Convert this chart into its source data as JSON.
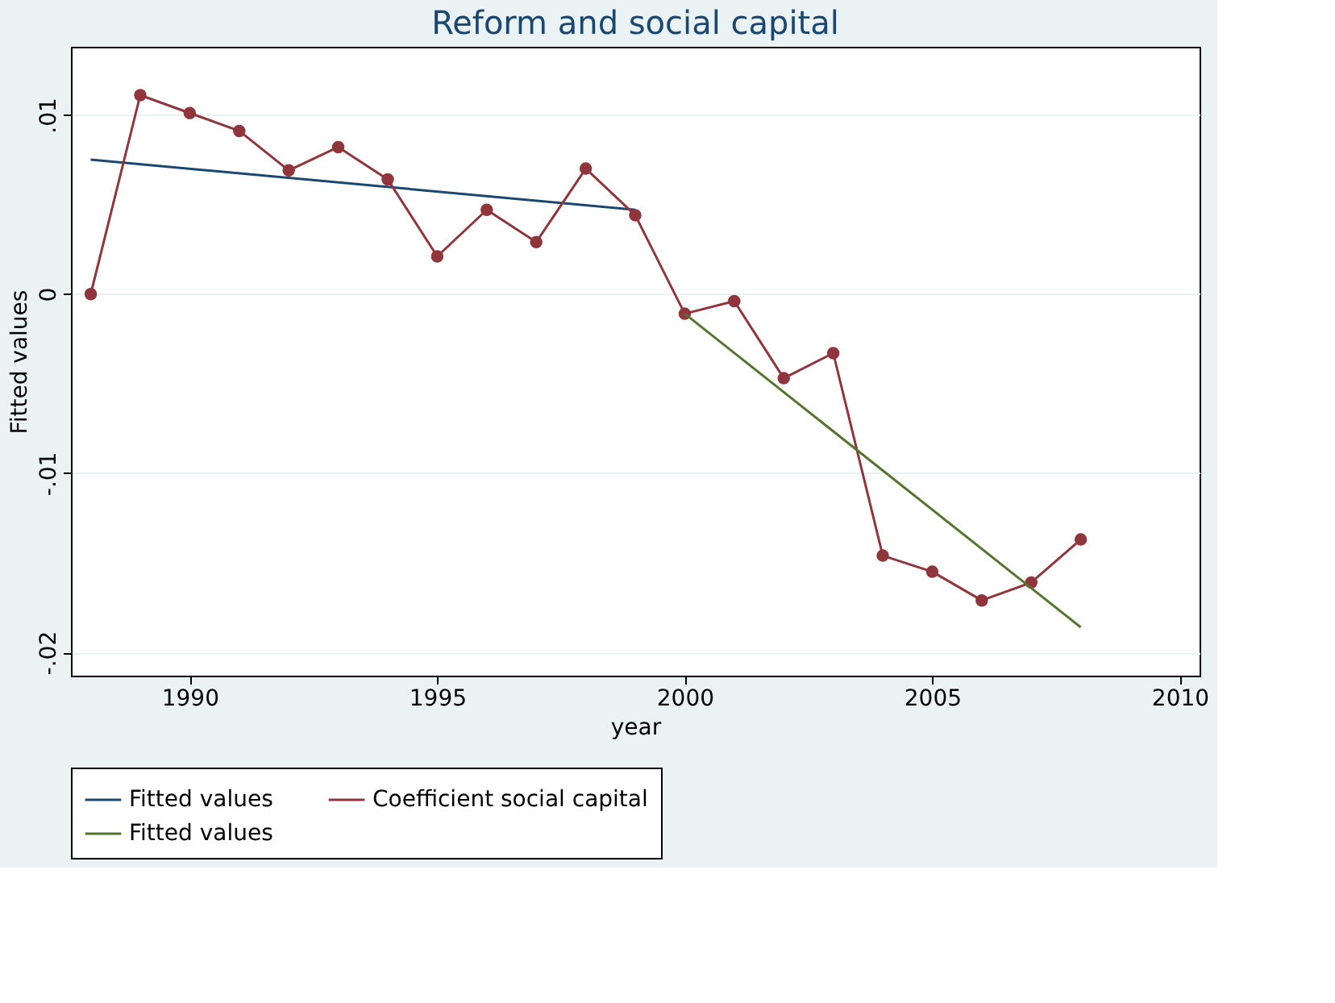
{
  "chart_data": {
    "type": "line",
    "title": "Reform and social capital",
    "xlabel": "year",
    "ylabel": "Fitted values",
    "xlim": [
      1987.6,
      2010.4
    ],
    "xticks": [
      1990,
      1995,
      2000,
      2005,
      2010
    ],
    "ylim": [
      -0.0213,
      0.0138
    ],
    "yticks": [
      {
        "value": -0.02,
        "label": "-.02"
      },
      {
        "value": -0.01,
        "label": "-.01"
      },
      {
        "value": 0,
        "label": "0"
      },
      {
        "value": 0.01,
        "label": ".01"
      }
    ],
    "grid": "y",
    "legend": "bottom",
    "series": [
      {
        "name": "Fitted values",
        "color": "#1a476f",
        "marker": "none",
        "x": [
          1988,
          1999
        ],
        "values": [
          0.0075,
          0.0047
        ]
      },
      {
        "name": "Coefficient social capital",
        "color": "#90353b",
        "marker": "circle",
        "x": [
          1988,
          1989,
          1990,
          1991,
          1992,
          1993,
          1994,
          1995,
          1996,
          1997,
          1998,
          1999,
          2000,
          2001,
          2002,
          2003,
          2004,
          2005,
          2006,
          2007,
          2008
        ],
        "values": [
          0,
          0.0111,
          0.0101,
          0.0091,
          0.0069,
          0.0082,
          0.0064,
          0.0021,
          0.0047,
          0.0029,
          0.007,
          0.0044,
          -0.0011,
          -0.0004,
          -0.0047,
          -0.0033,
          -0.0146,
          -0.0155,
          -0.0171,
          -0.0161,
          -0.0137
        ]
      },
      {
        "name": "Fitted values",
        "color": "#55752f",
        "marker": "none",
        "x": [
          2000,
          2008
        ],
        "values": [
          -0.0011,
          -0.0186
        ]
      }
    ]
  }
}
